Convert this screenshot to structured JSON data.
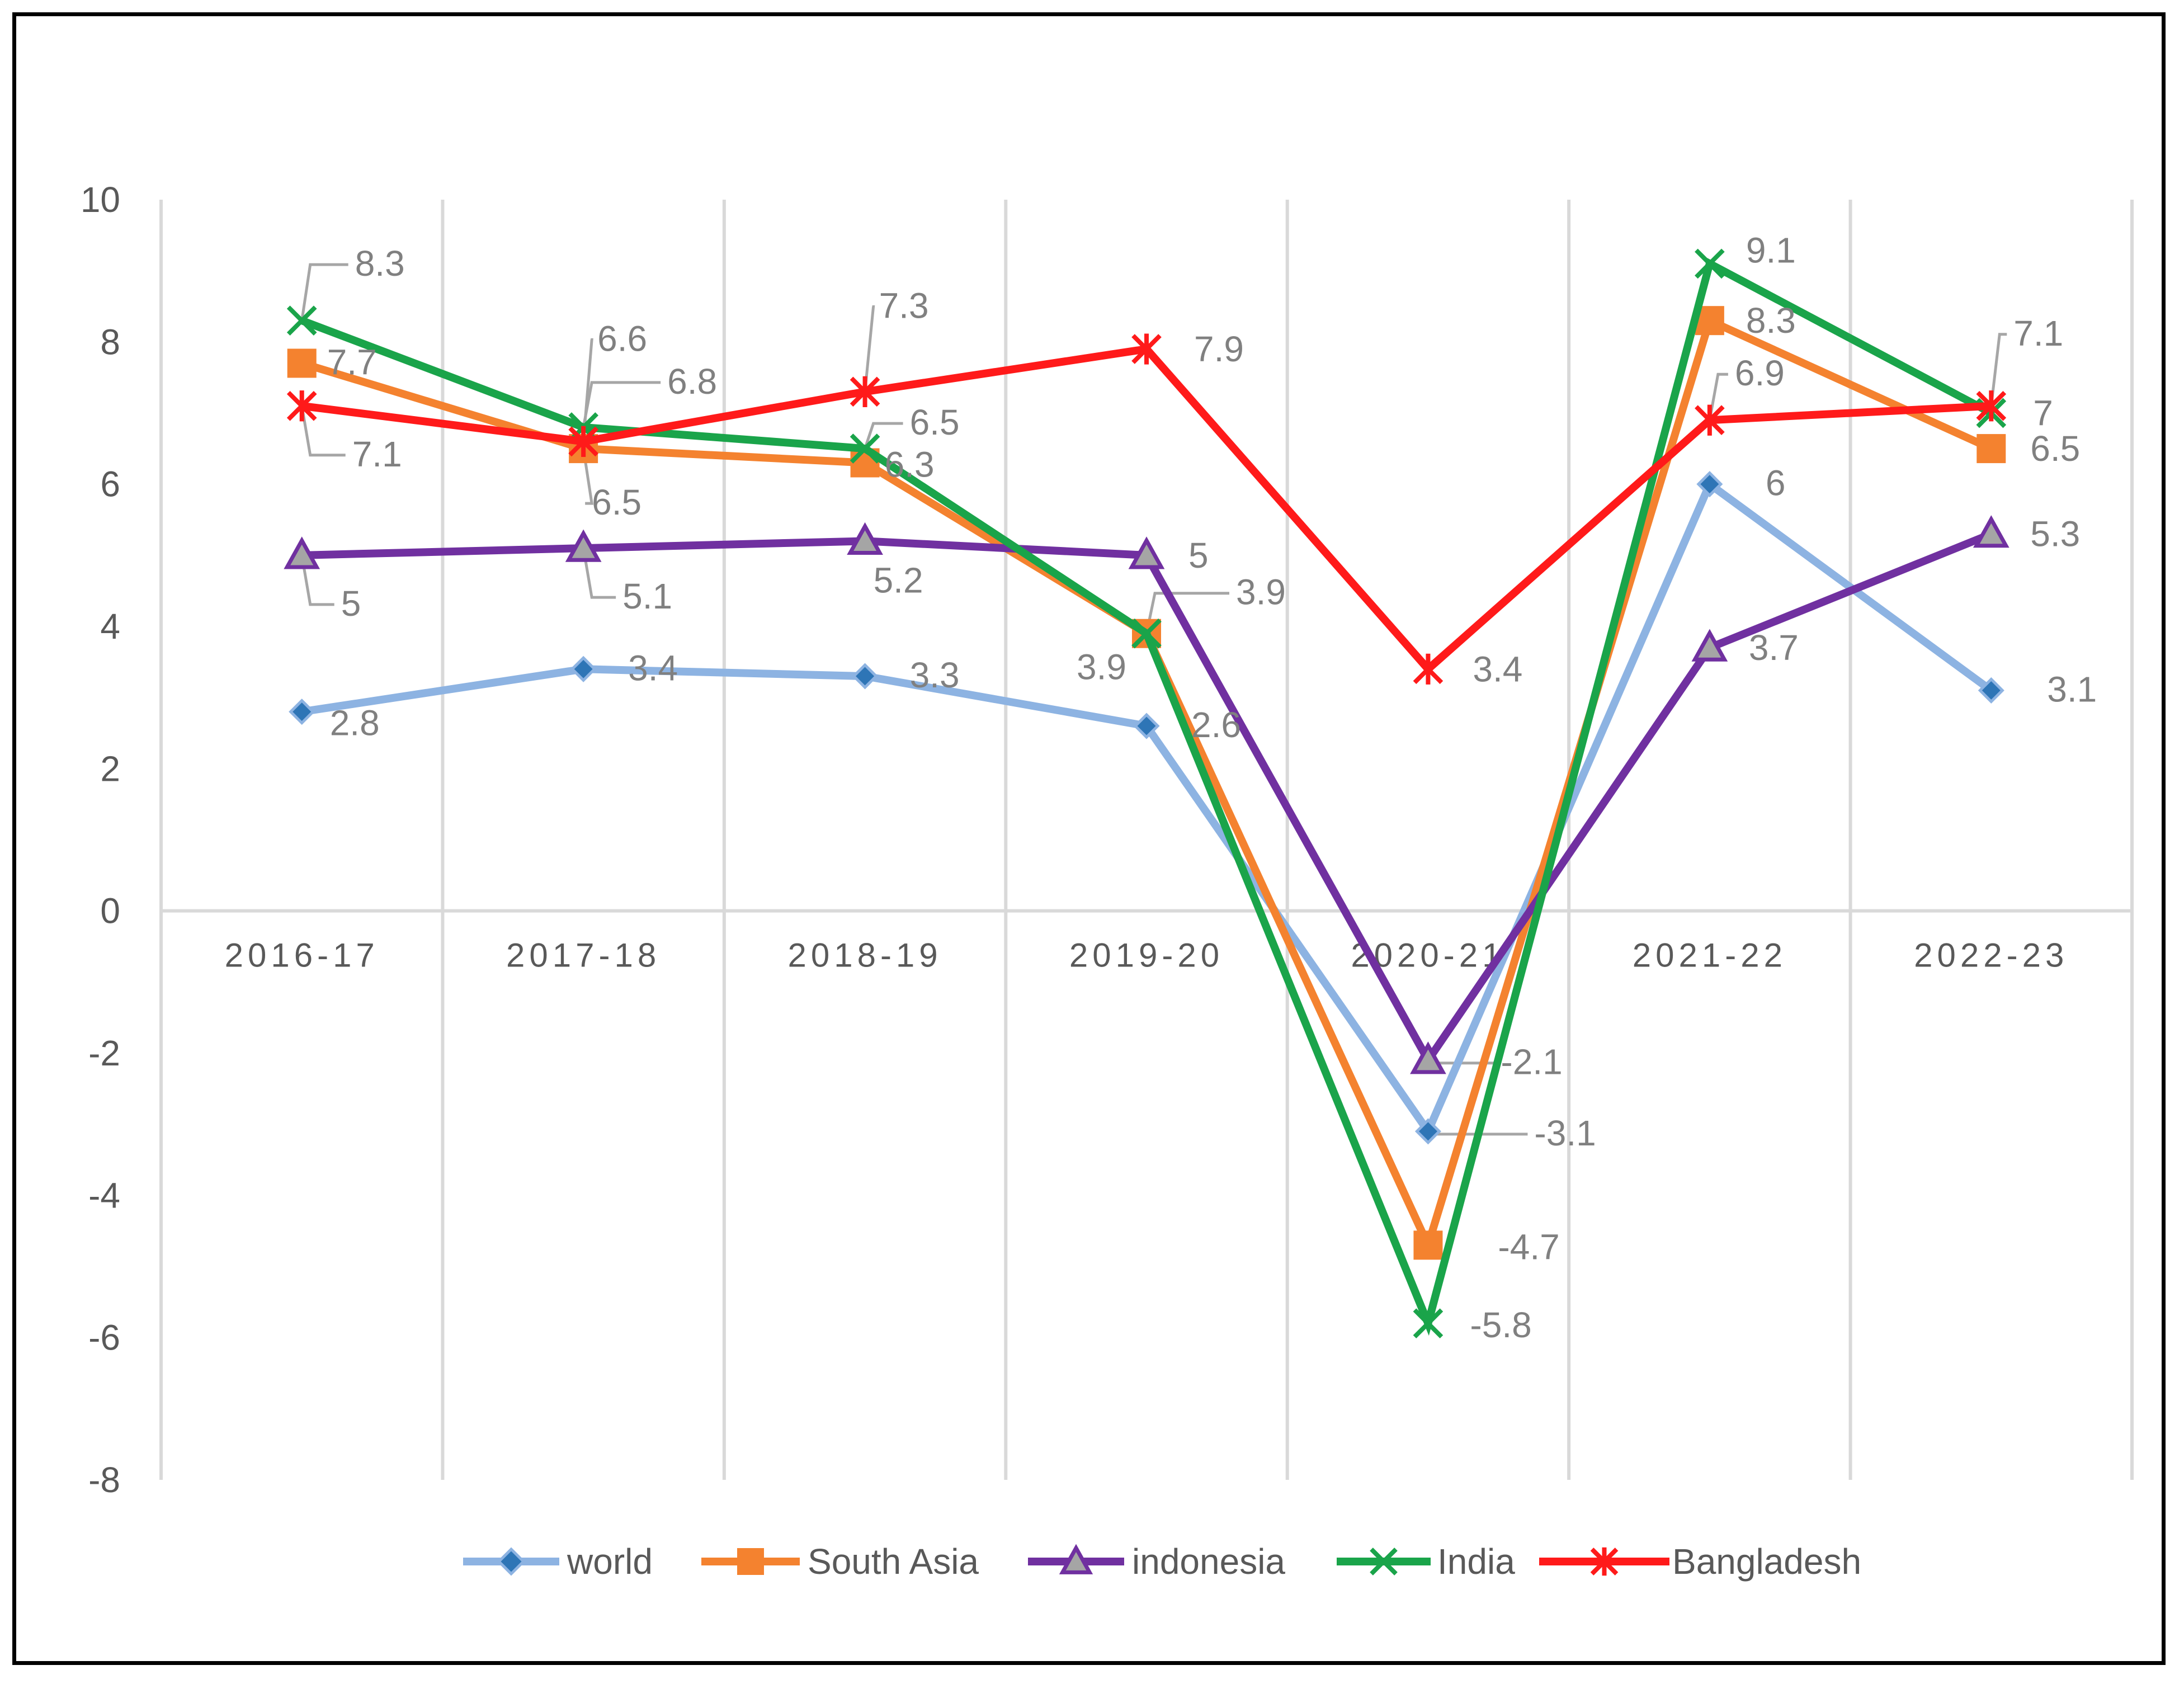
{
  "chart_data": {
    "type": "line",
    "categories": [
      "2016-17",
      "2017-18",
      "2018-19",
      "2019-20",
      "2020-21",
      "2021-22",
      "2022-23"
    ],
    "ylim": [
      -8,
      10
    ],
    "yticks": [
      10,
      8,
      6,
      4,
      2,
      0,
      -2,
      -4,
      -6,
      -8
    ],
    "ytick_labels": [
      "10",
      "8",
      "6",
      "4",
      "2",
      "0",
      "-2",
      "-4",
      "-6",
      "-8"
    ],
    "grid": "vertical",
    "legend": "bottom",
    "series": [
      {
        "name": "world",
        "color": "#8DB3E2",
        "marker": "diamond",
        "marker_color": "#2E75B6",
        "values": [
          2.8,
          3.4,
          3.3,
          2.6,
          -3.1,
          6,
          3.1
        ],
        "labels": [
          "2.8",
          "3.4",
          "3.3",
          "2.6",
          "-3.1",
          "6",
          "3.1"
        ]
      },
      {
        "name": "South Asia",
        "color": "#F4822F",
        "marker": "square",
        "marker_color": "#F4822F",
        "values": [
          7.7,
          6.5,
          6.3,
          3.9,
          -4.7,
          8.3,
          6.5
        ],
        "labels": [
          "7.7",
          "6.5",
          "6.3",
          "3.9",
          "-4.7",
          "8.3",
          "6.5"
        ]
      },
      {
        "name": "indonesia",
        "color": "#7030A0",
        "marker": "triangle",
        "marker_color": "#A5A5A5",
        "values": [
          5,
          5.1,
          5.2,
          5,
          -2.1,
          3.7,
          5.3
        ],
        "labels": [
          "5",
          "5.1",
          "5.2",
          "5",
          "-2.1",
          "3.7",
          "5.3"
        ]
      },
      {
        "name": "India",
        "color": "#1AA44A",
        "marker": "x",
        "marker_color": "#1AA44A",
        "values": [
          8.3,
          6.8,
          6.5,
          3.9,
          -5.8,
          9.1,
          7
        ],
        "labels": [
          "8.3",
          "6.8",
          "6.5",
          "3.9",
          "-5.8",
          "9.1",
          "7"
        ]
      },
      {
        "name": "Bangladesh",
        "color": "#FF1A1A",
        "marker": "star",
        "marker_color": "#FF1A1A",
        "values": [
          7.1,
          6.6,
          7.3,
          7.9,
          3.4,
          6.9,
          7.1
        ],
        "labels": [
          "7.1",
          "6.6",
          "7.3",
          "7.9",
          "3.4",
          "6.9",
          "7.1"
        ]
      }
    ]
  }
}
